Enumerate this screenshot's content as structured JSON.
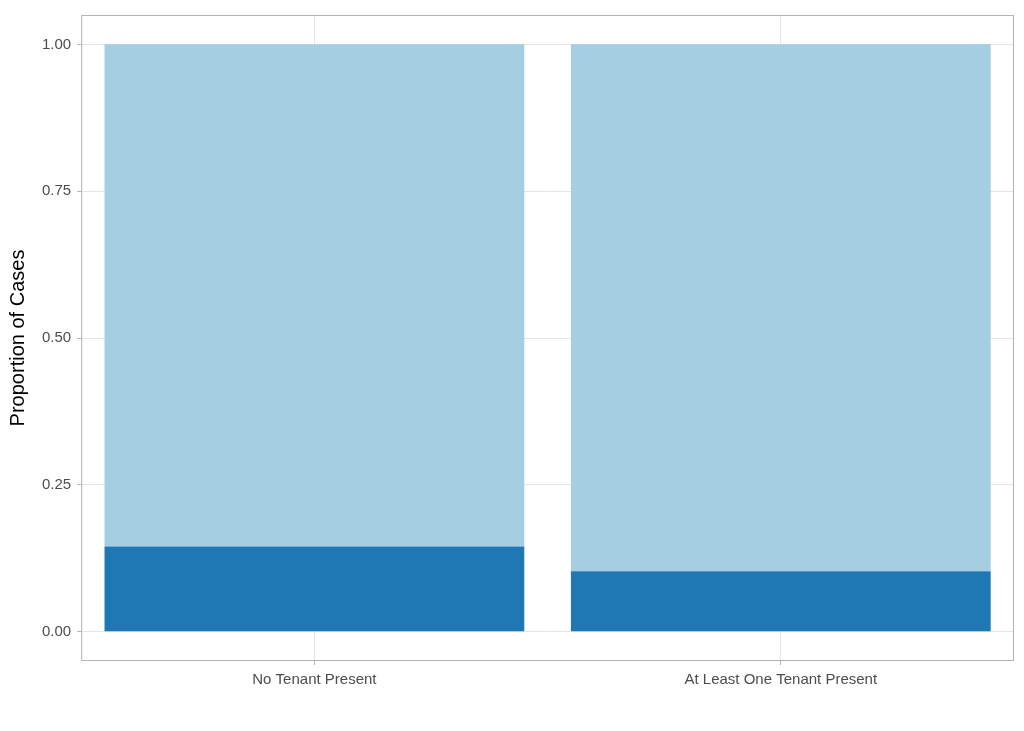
{
  "chart_data": {
    "type": "bar",
    "stacked": true,
    "grid": true,
    "y_label": "Proportion of Cases",
    "categories": [
      "No Tenant Present",
      "At Least One Tenant Present"
    ],
    "series": [
      {
        "color": "#1f78b4",
        "values": [
          0.145,
          0.103
        ]
      },
      {
        "color": "#a6cee3",
        "values": [
          0.855,
          0.897
        ]
      }
    ],
    "ylim": [
      -0.05,
      1.05
    ],
    "yticks": [
      {
        "value": 0,
        "label": "0.00"
      },
      {
        "value": 0.25,
        "label": "0.25"
      },
      {
        "value": 0.5,
        "label": "0.50"
      },
      {
        "value": 0.75,
        "label": "0.75"
      },
      {
        "value": 1,
        "label": "1.00"
      }
    ]
  }
}
